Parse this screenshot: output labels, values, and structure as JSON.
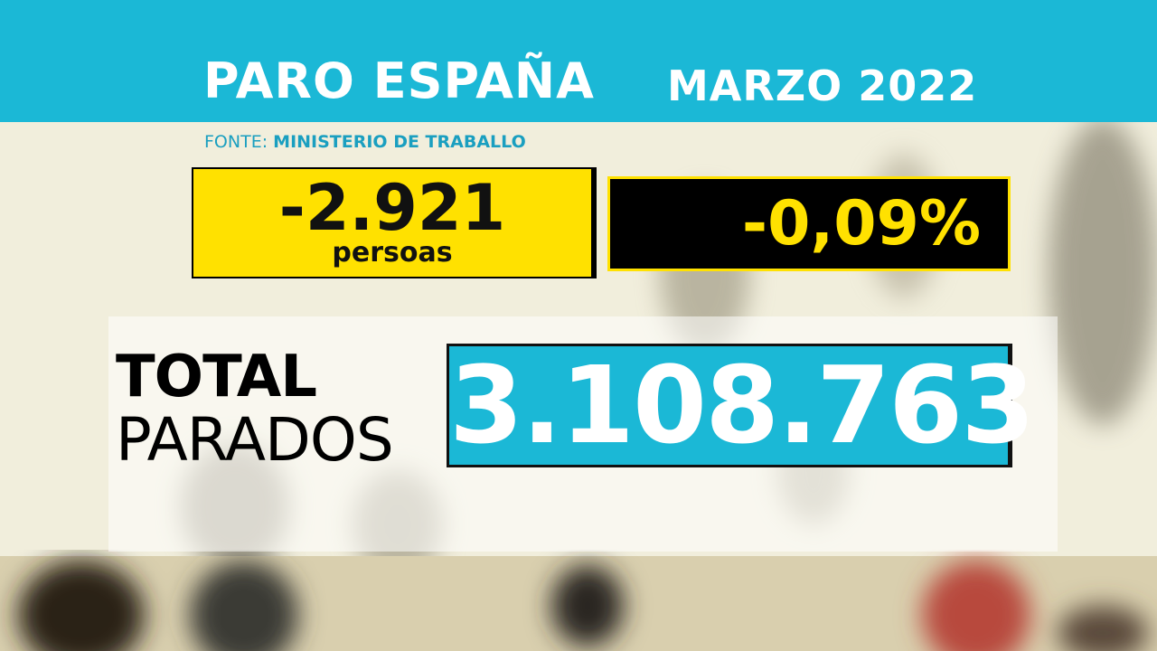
{
  "header": {
    "title": "PARO ESPAÑA",
    "date": "MARZO 2022"
  },
  "source": {
    "label": "FONTE:",
    "name": "MINISTERIO DE TRABALLO"
  },
  "change": {
    "absolute": "-2.921",
    "unit": "persoas",
    "percent": "-0,09%"
  },
  "total": {
    "label_top": "TOTAL",
    "label_bottom": "PARADOS",
    "value": "3.108.763"
  }
}
